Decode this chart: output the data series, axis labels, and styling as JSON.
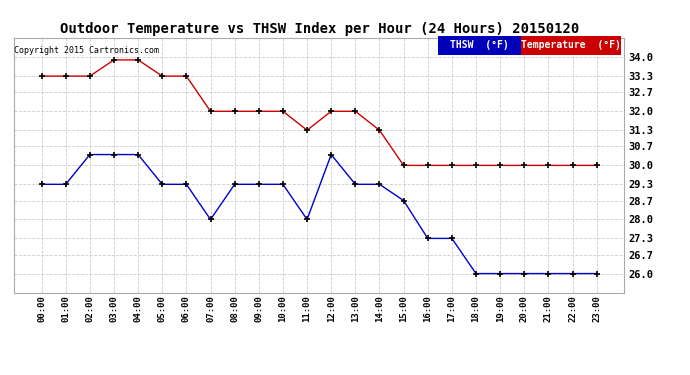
{
  "title": "Outdoor Temperature vs THSW Index per Hour (24 Hours) 20150120",
  "copyright": "Copyright 2015 Cartronics.com",
  "hours": [
    "00:00",
    "01:00",
    "02:00",
    "03:00",
    "04:00",
    "05:00",
    "06:00",
    "07:00",
    "08:00",
    "09:00",
    "10:00",
    "11:00",
    "12:00",
    "13:00",
    "14:00",
    "15:00",
    "16:00",
    "17:00",
    "18:00",
    "19:00",
    "20:00",
    "21:00",
    "22:00",
    "23:00"
  ],
  "temperature": [
    33.3,
    33.3,
    33.3,
    33.9,
    33.9,
    33.3,
    33.3,
    32.0,
    32.0,
    32.0,
    32.0,
    31.3,
    32.0,
    32.0,
    31.3,
    30.0,
    30.0,
    30.0,
    30.0,
    30.0,
    30.0,
    30.0,
    30.0,
    30.0
  ],
  "thsw": [
    29.3,
    29.3,
    30.4,
    30.4,
    30.4,
    29.3,
    29.3,
    28.0,
    29.3,
    29.3,
    29.3,
    28.0,
    30.4,
    29.3,
    29.3,
    28.7,
    27.3,
    27.3,
    26.0,
    26.0,
    26.0,
    26.0,
    26.0,
    26.0
  ],
  "temp_color": "#cc0000",
  "thsw_color": "#0000cc",
  "marker_color": "#000000",
  "bg_color": "#ffffff",
  "grid_color": "#cccccc",
  "ylim_min": 25.3,
  "ylim_max": 34.7,
  "yticks": [
    26.0,
    26.7,
    27.3,
    28.0,
    28.7,
    29.3,
    30.0,
    30.7,
    31.3,
    32.0,
    32.7,
    33.3,
    34.0
  ],
  "legend_thsw_bg": "#0000bb",
  "legend_temp_bg": "#cc0000",
  "legend_thsw_text": "THSW  (°F)",
  "legend_temp_text": "Temperature  (°F)"
}
